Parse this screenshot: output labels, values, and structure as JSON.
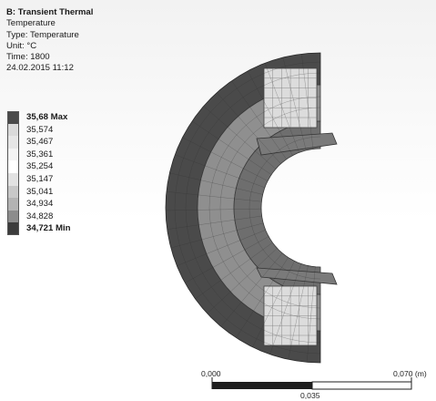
{
  "info": {
    "title": "B: Transient Thermal",
    "line1": "Temperature",
    "line2": "Type: Temperature",
    "line3": "Unit: °C",
    "line4": "Time: 1800",
    "line5": "24.02.2015 11:12"
  },
  "legend": {
    "levels": [
      {
        "label": "35,68 Max",
        "color": "#4a4a4a",
        "bold": true
      },
      {
        "label": "35,574",
        "color": "#dadada",
        "bold": false
      },
      {
        "label": "35,467",
        "color": "#e6e6e6",
        "bold": false
      },
      {
        "label": "35,361",
        "color": "#f3f3f3",
        "bold": false
      },
      {
        "label": "35,254",
        "color": "#ffffff",
        "bold": false
      },
      {
        "label": "35,147",
        "color": "#e2e2e2",
        "bold": false
      },
      {
        "label": "35,041",
        "color": "#c8c8c8",
        "bold": false
      },
      {
        "label": "34,934",
        "color": "#b3b3b3",
        "bold": false
      },
      {
        "label": "34,828",
        "color": "#8c8c8c",
        "bold": false
      },
      {
        "label": "34,721 Min",
        "color": "#3c3c3c",
        "bold": true
      }
    ]
  },
  "scale_bar": {
    "left_label": "0,000",
    "mid_label": "0,035",
    "right_label": "0,070 (m)"
  },
  "colors": {
    "outer_shell": "#4a4a4a",
    "middle_layer": "#8f8f8f",
    "inner_layer": "#6e6e6e",
    "flange": "#7a7a7a",
    "pocket": "#dcdcdc",
    "mesh_line": "#2e2e2e"
  }
}
